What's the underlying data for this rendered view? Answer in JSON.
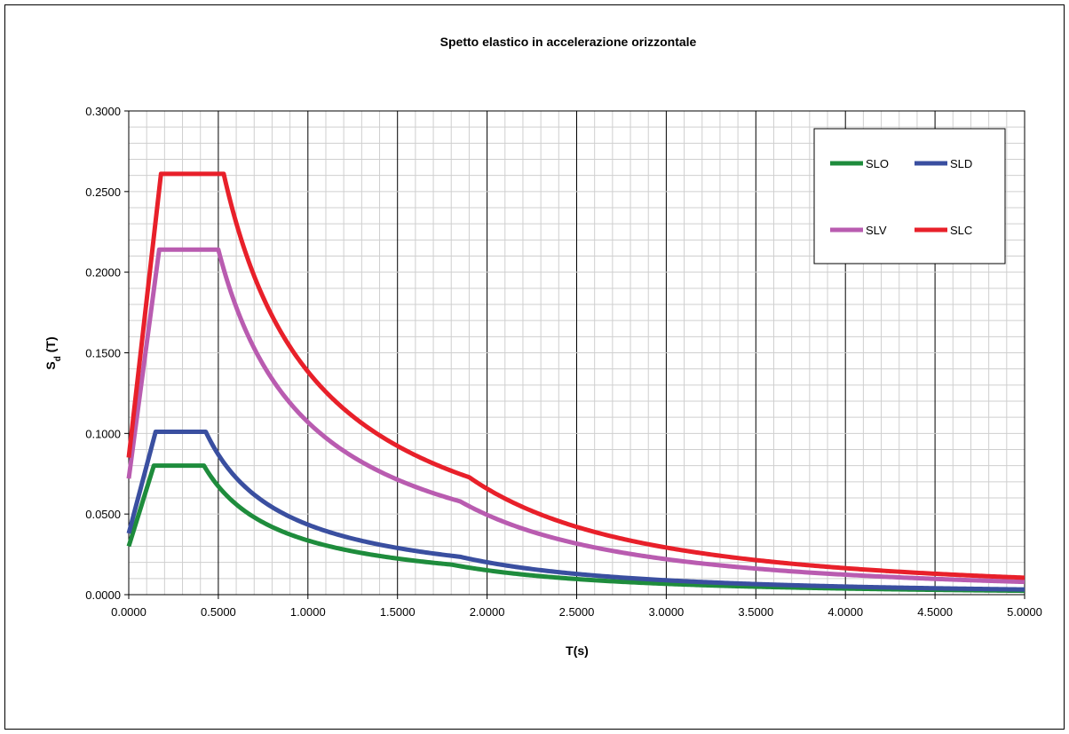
{
  "chart_data": {
    "type": "line",
    "title": "Spetto elastico in accelerazione orizzontale",
    "xlabel": "T(s)",
    "ylabel_main": "S",
    "ylabel_sub": "d",
    "ylabel_suffix": " (T)",
    "xlim": [
      0,
      5
    ],
    "ylim": [
      0,
      0.3
    ],
    "x_ticks": [
      "0.0000",
      "0.5000",
      "1.0000",
      "1.5000",
      "2.0000",
      "2.5000",
      "3.0000",
      "3.5000",
      "4.0000",
      "4.5000",
      "5.0000"
    ],
    "y_ticks": [
      "0.0000",
      "0.0500",
      "0.1000",
      "0.1500",
      "0.2000",
      "0.2500",
      "0.3000"
    ],
    "grid": true,
    "legend_position": "top-right",
    "series": [
      {
        "name": "SLO",
        "color": "#1e8c3c",
        "params": {
          "ag_F0": 0.08,
          "TB": 0.14,
          "TC": 0.42,
          "TD": 1.8,
          "y0": 0.03
        }
      },
      {
        "name": "SLD",
        "color": "#3a4fa0",
        "params": {
          "ag_F0": 0.101,
          "TB": 0.15,
          "TC": 0.43,
          "TD": 1.85,
          "y0": 0.038
        }
      },
      {
        "name": "SLV",
        "color": "#b95cb0",
        "params": {
          "ag_F0": 0.214,
          "TB": 0.17,
          "TC": 0.5,
          "TD": 1.85,
          "y0": 0.072
        }
      },
      {
        "name": "SLC",
        "color": "#e8202a",
        "params": {
          "ag_F0": 0.261,
          "TB": 0.18,
          "TC": 0.53,
          "TD": 1.9,
          "y0": 0.085
        }
      }
    ]
  }
}
